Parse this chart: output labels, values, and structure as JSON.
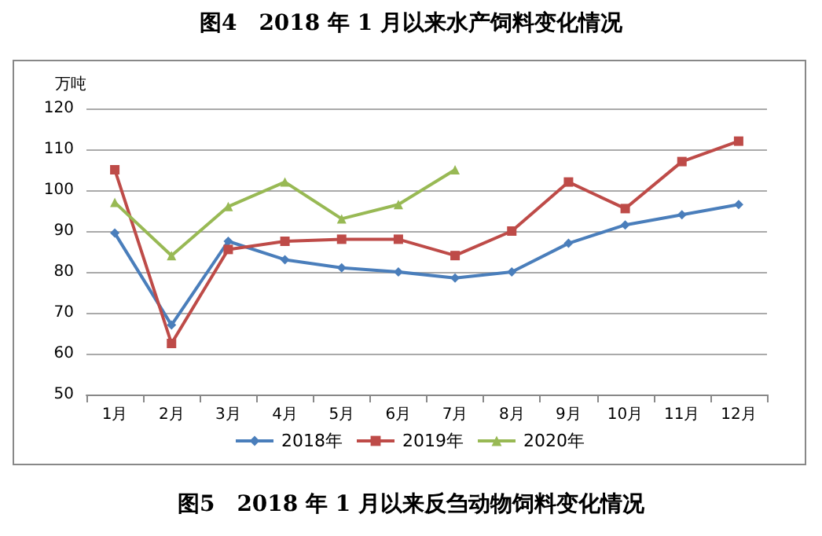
{
  "chart_data": {
    "type": "line",
    "title": "图4　2018 年 1 月以来水产饲料变化情况",
    "ylabel": "万吨",
    "annotations": [
      "图5　2018 年 1 月以来反刍动物饲料变化情况"
    ],
    "categories": [
      "1月",
      "2月",
      "3月",
      "4月",
      "5月",
      "6月",
      "7月",
      "8月",
      "9月",
      "10月",
      "11月",
      "12月"
    ],
    "series": [
      {
        "name": "2018年",
        "color": "#4a7ebb",
        "marker": "diamond",
        "values": [
          89.5,
          67,
          87.5,
          83,
          81,
          80,
          78.5,
          80,
          87,
          91.5,
          94,
          96.5
        ]
      },
      {
        "name": "2019年",
        "color": "#be4b48",
        "marker": "square",
        "values": [
          105,
          62.5,
          85.5,
          87.5,
          88,
          88,
          84,
          90,
          102,
          95.5,
          107,
          112
        ]
      },
      {
        "name": "2020年",
        "color": "#98b954",
        "marker": "triangle",
        "values": [
          97,
          84,
          96,
          102,
          93,
          96.5,
          105,
          null,
          null,
          null,
          null,
          null
        ]
      }
    ],
    "ylim": [
      50,
      120
    ],
    "yticks": [
      50,
      60,
      70,
      80,
      90,
      100,
      110,
      120
    ],
    "grid": "y",
    "legend": "bottom",
    "line_style": "solid"
  }
}
